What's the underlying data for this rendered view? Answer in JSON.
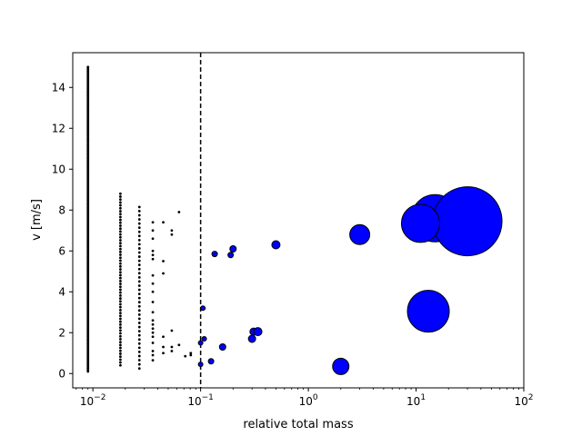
{
  "chart_data": {
    "type": "scatter",
    "title": "",
    "xlabel": "relative total mass",
    "ylabel": "v [m/s]",
    "xscale": "log",
    "xlim": [
      0.0065,
      100
    ],
    "ylim": [
      -0.7,
      15.7
    ],
    "x_tick_labels": [
      {
        "base": "10",
        "exp": "−2",
        "value": 0.01
      },
      {
        "base": "10",
        "exp": "−1",
        "value": 0.1
      },
      {
        "base": "10",
        "exp": "0",
        "value": 1
      },
      {
        "base": "10",
        "exp": "1",
        "value": 10
      },
      {
        "base": "10",
        "exp": "2",
        "value": 100
      }
    ],
    "y_tick_labels": [
      "0",
      "2",
      "4",
      "6",
      "8",
      "10",
      "12",
      "14"
    ],
    "y_tick_values": [
      0,
      2,
      4,
      6,
      8,
      10,
      12,
      14
    ],
    "threshold_line": {
      "x": 0.1,
      "style": "dashed"
    },
    "colors": {
      "small_points": "#000000",
      "large_points_fill": "#0000ff",
      "large_points_edge": "#000000"
    },
    "small_points": [
      {
        "x": 0.009,
        "y_range": [
          0.1,
          15.0
        ],
        "count": 200
      },
      {
        "x": 0.018,
        "y_range": [
          0.4,
          8.8
        ],
        "count": 60
      },
      {
        "x": 0.027,
        "y_range": [
          0.25,
          8.15
        ],
        "count": 40
      },
      {
        "x": 0.036,
        "y": [
          0.65,
          0.9,
          1.1,
          1.5,
          1.8,
          2.0,
          2.2,
          2.4,
          2.6,
          3.0,
          3.5,
          4.0,
          4.4,
          4.8,
          5.6,
          5.8,
          6.0,
          6.6,
          7.0,
          7.4
        ]
      },
      {
        "x": 0.045,
        "y": [
          1.0,
          1.3,
          1.8,
          4.9,
          5.5,
          7.4
        ]
      },
      {
        "x": 0.054,
        "y": [
          1.1,
          1.3,
          2.1,
          6.8,
          7.0
        ]
      },
      {
        "x": 0.063,
        "y": [
          1.4,
          7.9
        ]
      },
      {
        "x": 0.072,
        "y": [
          0.85
        ]
      },
      {
        "x": 0.081,
        "y": [
          0.9,
          1.0
        ]
      }
    ],
    "large_points": [
      {
        "x": 0.1,
        "y": 0.45,
        "d": 5
      },
      {
        "x": 0.1,
        "y": 1.5,
        "d": 5
      },
      {
        "x": 0.105,
        "y": 3.2,
        "d": 5
      },
      {
        "x": 0.108,
        "y": 1.7,
        "d": 5
      },
      {
        "x": 0.125,
        "y": 0.6,
        "d": 6
      },
      {
        "x": 0.135,
        "y": 5.85,
        "d": 6
      },
      {
        "x": 0.16,
        "y": 1.3,
        "d": 7
      },
      {
        "x": 0.19,
        "y": 5.8,
        "d": 6
      },
      {
        "x": 0.2,
        "y": 6.1,
        "d": 7
      },
      {
        "x": 0.3,
        "y": 1.7,
        "d": 8
      },
      {
        "x": 0.31,
        "y": 2.05,
        "d": 8
      },
      {
        "x": 0.34,
        "y": 2.05,
        "d": 9
      },
      {
        "x": 0.5,
        "y": 6.3,
        "d": 9
      },
      {
        "x": 2.0,
        "y": 0.35,
        "d": 18
      },
      {
        "x": 3.0,
        "y": 6.8,
        "d": 22
      },
      {
        "x": 13.0,
        "y": 3.05,
        "d": 46
      },
      {
        "x": 15.0,
        "y": 7.6,
        "d": 52
      },
      {
        "x": 30.0,
        "y": 7.45,
        "d": 76
      },
      {
        "x": 11.0,
        "y": 7.35,
        "d": 42
      }
    ]
  }
}
